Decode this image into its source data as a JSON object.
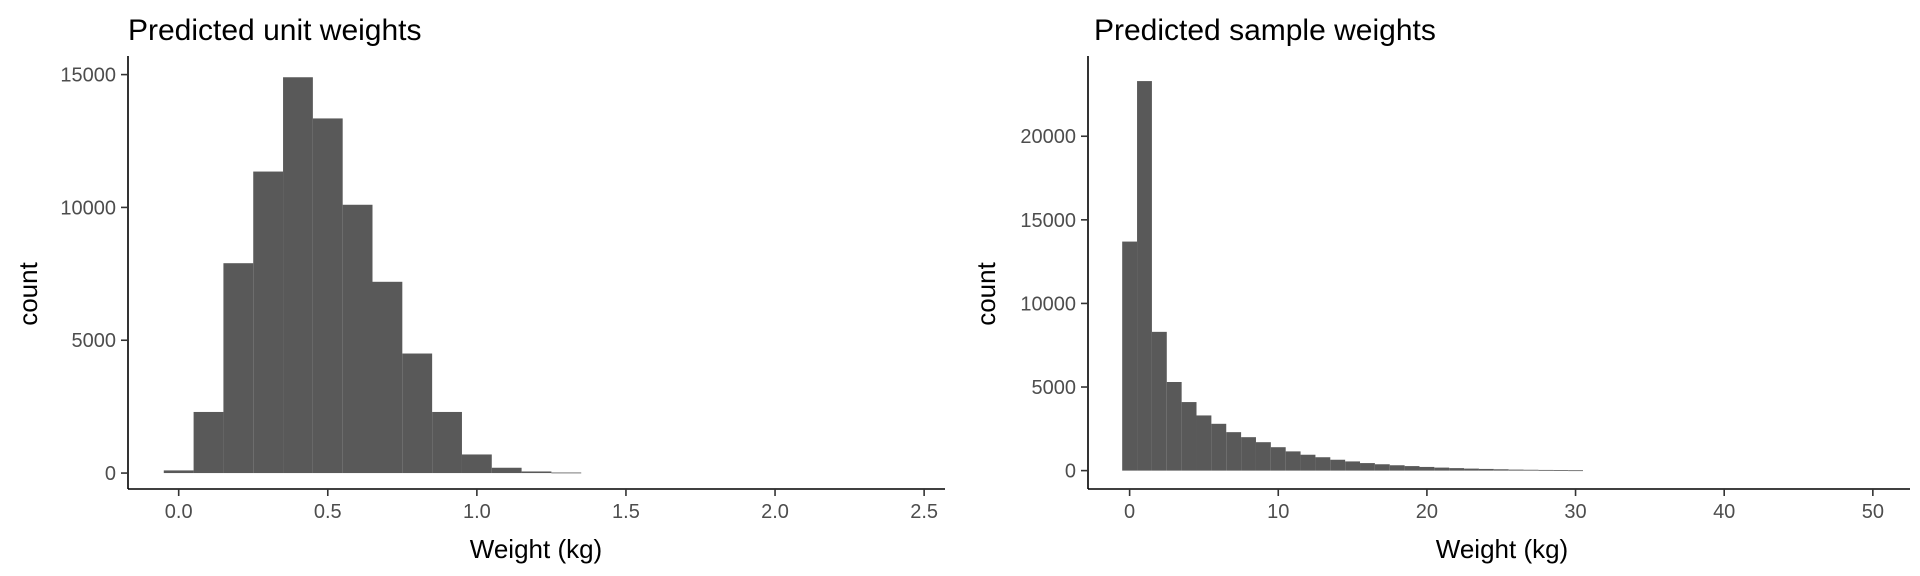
{
  "colors": {
    "bar": "#595959",
    "axis": "#000000",
    "tick_label": "#4d4d4d"
  },
  "chart_data": [
    {
      "type": "bar",
      "subtype": "histogram",
      "title": "Predicted unit weights",
      "xlabel": "Weight (kg)",
      "ylabel": "count",
      "xlim": [
        -0.17,
        2.57
      ],
      "ylim": [
        -600,
        15700
      ],
      "xticks": [
        0.0,
        0.5,
        1.0,
        1.5,
        2.0,
        2.5
      ],
      "xtick_labels": [
        "0.0",
        "0.5",
        "1.0",
        "1.5",
        "2.0",
        "2.5"
      ],
      "yticks": [
        0,
        5000,
        10000,
        15000
      ],
      "ytick_labels": [
        "0",
        "5000",
        "10000",
        "15000"
      ],
      "grid": false,
      "bin_width": 0.1,
      "bin_centers": [
        0.0,
        0.1,
        0.2,
        0.3,
        0.4,
        0.5,
        0.6,
        0.7,
        0.8,
        0.9,
        1.0,
        1.1,
        1.2,
        1.3
      ],
      "values": [
        100,
        2300,
        7900,
        11350,
        14900,
        13350,
        10100,
        7200,
        4500,
        2300,
        700,
        200,
        60,
        20
      ]
    },
    {
      "type": "bar",
      "subtype": "histogram",
      "title": "Predicted sample weights",
      "xlabel": "Weight (kg)",
      "ylabel": "count",
      "xlim": [
        -2.8,
        52.5
      ],
      "ylim": [
        -1100,
        24800
      ],
      "xticks": [
        0,
        10,
        20,
        30,
        40,
        50
      ],
      "xtick_labels": [
        "0",
        "10",
        "20",
        "30",
        "40",
        "50"
      ],
      "yticks": [
        0,
        5000,
        10000,
        15000,
        20000
      ],
      "ytick_labels": [
        "0",
        "5000",
        "10000",
        "15000",
        "20000"
      ],
      "grid": false,
      "bin_width": 1,
      "bin_centers": [
        0,
        1,
        2,
        3,
        4,
        5,
        6,
        7,
        8,
        9,
        10,
        11,
        12,
        13,
        14,
        15,
        16,
        17,
        18,
        19,
        20,
        21,
        22,
        23,
        24,
        25,
        26,
        27,
        28,
        29,
        30
      ],
      "values": [
        13700,
        23300,
        8300,
        5300,
        4100,
        3300,
        2800,
        2300,
        2000,
        1700,
        1400,
        1150,
        950,
        800,
        650,
        550,
        450,
        380,
        320,
        270,
        220,
        180,
        150,
        120,
        100,
        80,
        60,
        50,
        40,
        30,
        20
      ]
    }
  ]
}
